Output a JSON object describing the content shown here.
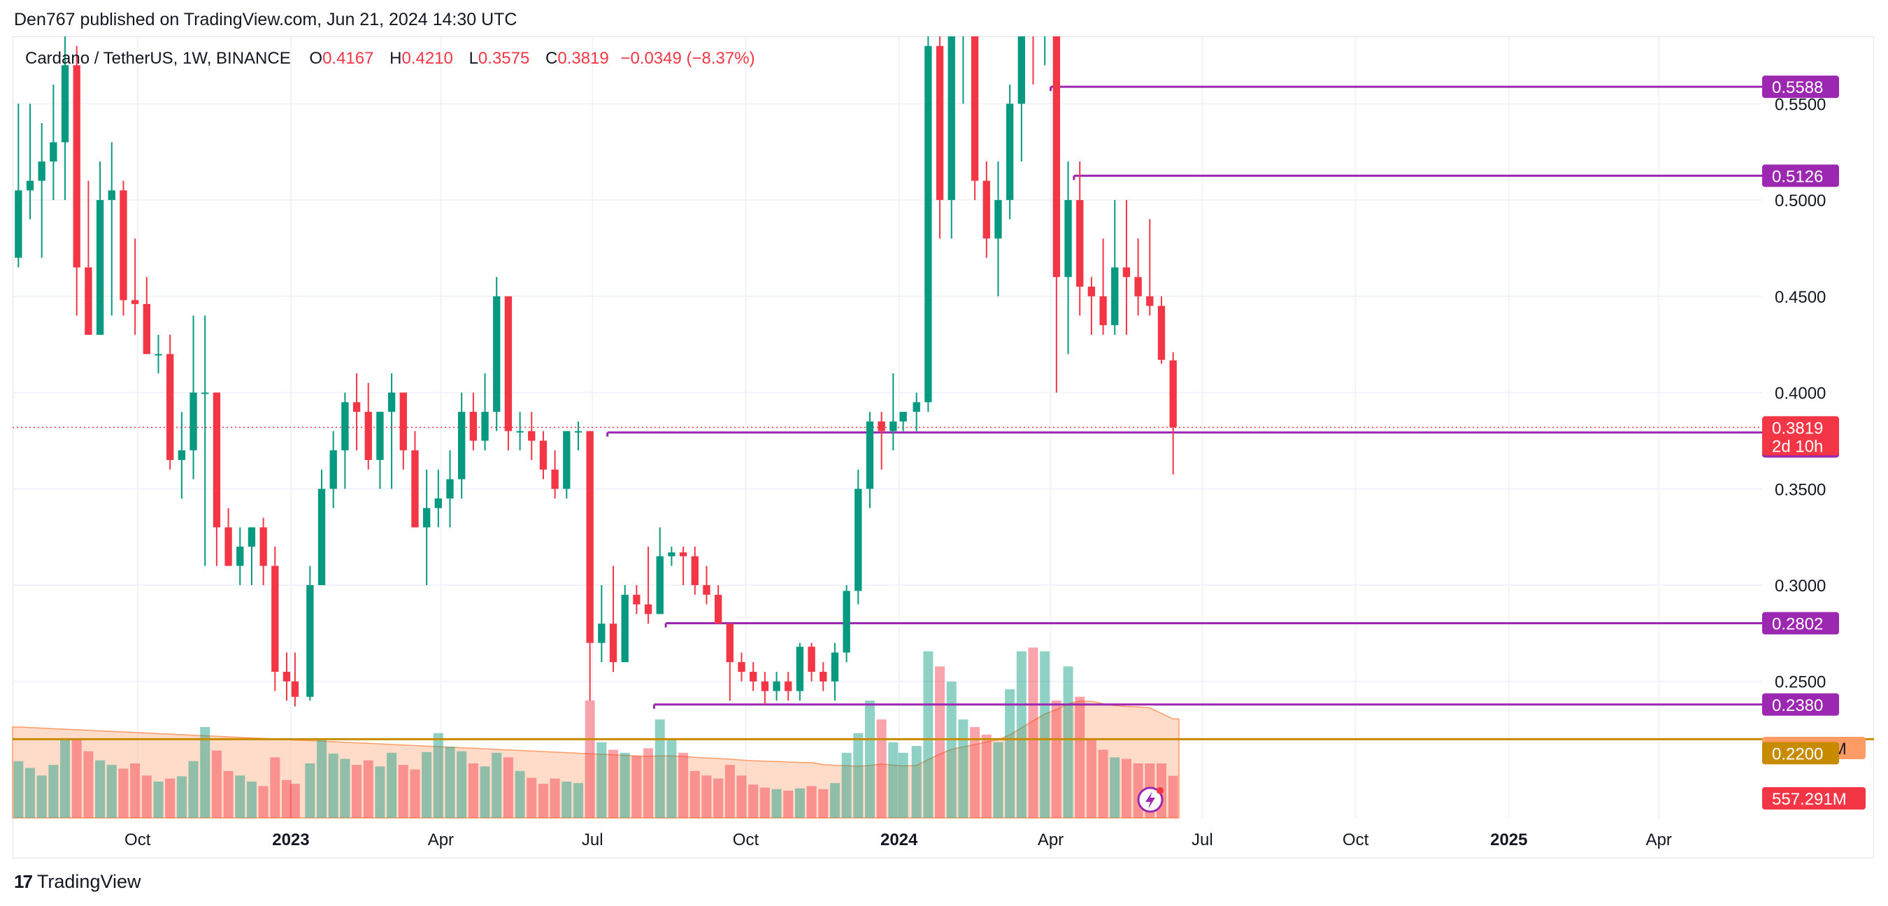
{
  "header": {
    "published": "Den767 published on TradingView.com, Jun 21, 2024 14:30 UTC"
  },
  "legend": {
    "symbol": "Cardano / TetherUS, 1W, BINANCE",
    "o_label": "O",
    "o_value": "0.4167",
    "h_label": "H",
    "h_value": "0.4210",
    "l_label": "L",
    "l_value": "0.3575",
    "c_label": "C",
    "c_value": "0.3819",
    "change": "−0.0349 (−8.37%)"
  },
  "footer": {
    "brand": "TradingView",
    "logo_icon": "tradingview-logo-icon"
  },
  "colors": {
    "up": "#089981",
    "down": "#f23645",
    "level": "#9c27b0",
    "volume_ma": "#ff9c66",
    "support_line": "#c88b00",
    "grid": "#f0f3fa"
  },
  "chart_data": {
    "type": "candlestick",
    "interval": "1W",
    "y_axis": {
      "range": [
        0.19,
        0.585
      ],
      "ticks": [
        0.25,
        0.3,
        0.35,
        0.4,
        0.45,
        0.5,
        0.55
      ],
      "tick_labels": [
        "0.2500",
        "0.3000",
        "0.3500",
        "0.4000",
        "0.4500",
        "0.5000",
        "0.5500"
      ],
      "side": "right"
    },
    "x_axis": {
      "range": [
        "2022-07-18",
        "2025-06-02"
      ],
      "ticks": [
        {
          "date": "2022-10-01",
          "label": "Oct",
          "bold": false
        },
        {
          "date": "2023-01-01",
          "label": "2023",
          "bold": true
        },
        {
          "date": "2023-04-01",
          "label": "Apr",
          "bold": false
        },
        {
          "date": "2023-07-01",
          "label": "Jul",
          "bold": false
        },
        {
          "date": "2023-10-01",
          "label": "Oct",
          "bold": false
        },
        {
          "date": "2024-01-01",
          "label": "2024",
          "bold": true
        },
        {
          "date": "2024-04-01",
          "label": "Apr",
          "bold": false
        },
        {
          "date": "2024-07-01",
          "label": "Jul",
          "bold": false
        },
        {
          "date": "2024-10-01",
          "label": "Oct",
          "bold": false
        },
        {
          "date": "2025-01-01",
          "label": "2025",
          "bold": true
        },
        {
          "date": "2025-04-01",
          "label": "Apr",
          "bold": false
        }
      ]
    },
    "grid": true,
    "current_price": {
      "value": 0.3819,
      "label": "0.3819",
      "countdown": "2d 10h"
    },
    "horizontal_levels": [
      {
        "value": 0.5588,
        "label": "0.5588",
        "from": "2024-04-01"
      },
      {
        "value": 0.5126,
        "label": "0.5126",
        "from": "2024-04-15"
      },
      {
        "value": 0.3793,
        "label": "0.3793",
        "from": "2023-07-10"
      },
      {
        "value": 0.2802,
        "label": "0.2802",
        "from": "2023-08-14"
      },
      {
        "value": 0.238,
        "label": "0.2380",
        "from": "2023-08-07"
      }
    ],
    "support_line": {
      "value": 0.22,
      "label": "0.2200"
    },
    "volume": {
      "label": "557.291M",
      "ma_label": "905.361M",
      "max_plotted": 2400
    },
    "candles": [
      {
        "t": "2022-07-18",
        "o": 0.47,
        "h": 0.55,
        "l": 0.465,
        "c": 0.505,
        "v": 750
      },
      {
        "t": "2022-07-25",
        "o": 0.505,
        "h": 0.55,
        "l": 0.49,
        "c": 0.51,
        "v": 660
      },
      {
        "t": "2022-08-01",
        "o": 0.51,
        "h": 0.54,
        "l": 0.47,
        "c": 0.52,
        "v": 560
      },
      {
        "t": "2022-08-08",
        "o": 0.52,
        "h": 0.56,
        "l": 0.5,
        "c": 0.53,
        "v": 700
      },
      {
        "t": "2022-08-15",
        "o": 0.53,
        "h": 0.585,
        "l": 0.5,
        "c": 0.57,
        "v": 1050
      },
      {
        "t": "2022-08-22",
        "o": 0.57,
        "h": 0.58,
        "l": 0.44,
        "c": 0.465,
        "v": 1050
      },
      {
        "t": "2022-08-29",
        "o": 0.465,
        "h": 0.51,
        "l": 0.43,
        "c": 0.43,
        "v": 880
      },
      {
        "t": "2022-09-05",
        "o": 0.43,
        "h": 0.52,
        "l": 0.43,
        "c": 0.5,
        "v": 760
      },
      {
        "t": "2022-09-12",
        "o": 0.5,
        "h": 0.53,
        "l": 0.44,
        "c": 0.505,
        "v": 700
      },
      {
        "t": "2022-09-19",
        "o": 0.505,
        "h": 0.51,
        "l": 0.44,
        "c": 0.448,
        "v": 650
      },
      {
        "t": "2022-09-26",
        "o": 0.448,
        "h": 0.48,
        "l": 0.43,
        "c": 0.446,
        "v": 720
      },
      {
        "t": "2022-10-03",
        "o": 0.446,
        "h": 0.46,
        "l": 0.42,
        "c": 0.42,
        "v": 560
      },
      {
        "t": "2022-10-10",
        "o": 0.42,
        "h": 0.43,
        "l": 0.41,
        "c": 0.42,
        "v": 480
      },
      {
        "t": "2022-10-17",
        "o": 0.42,
        "h": 0.43,
        "l": 0.36,
        "c": 0.365,
        "v": 520
      },
      {
        "t": "2022-10-24",
        "o": 0.365,
        "h": 0.39,
        "l": 0.345,
        "c": 0.37,
        "v": 550
      },
      {
        "t": "2022-10-31",
        "o": 0.37,
        "h": 0.44,
        "l": 0.355,
        "c": 0.4,
        "v": 750
      },
      {
        "t": "2022-11-07",
        "o": 0.4,
        "h": 0.44,
        "l": 0.31,
        "c": 0.4,
        "v": 1200
      },
      {
        "t": "2022-11-14",
        "o": 0.4,
        "h": 0.4,
        "l": 0.31,
        "c": 0.33,
        "v": 890
      },
      {
        "t": "2022-11-21",
        "o": 0.33,
        "h": 0.34,
        "l": 0.31,
        "c": 0.31,
        "v": 620
      },
      {
        "t": "2022-11-28",
        "o": 0.31,
        "h": 0.33,
        "l": 0.3,
        "c": 0.32,
        "v": 560
      },
      {
        "t": "2022-12-05",
        "o": 0.32,
        "h": 0.33,
        "l": 0.3,
        "c": 0.33,
        "v": 480
      },
      {
        "t": "2022-12-12",
        "o": 0.33,
        "h": 0.335,
        "l": 0.3,
        "c": 0.31,
        "v": 420
      },
      {
        "t": "2022-12-19",
        "o": 0.31,
        "h": 0.32,
        "l": 0.245,
        "c": 0.255,
        "v": 800
      },
      {
        "t": "2022-12-26",
        "o": 0.255,
        "h": 0.265,
        "l": 0.24,
        "c": 0.25,
        "v": 500
      },
      {
        "t": "2022-12-31",
        "o": 0.25,
        "h": 0.265,
        "l": 0.237,
        "c": 0.242,
        "v": 450
      },
      {
        "t": "2023-01-09",
        "o": 0.242,
        "h": 0.31,
        "l": 0.24,
        "c": 0.3,
        "v": 720
      },
      {
        "t": "2023-01-16",
        "o": 0.3,
        "h": 0.36,
        "l": 0.3,
        "c": 0.35,
        "v": 1050
      },
      {
        "t": "2023-01-23",
        "o": 0.35,
        "h": 0.38,
        "l": 0.34,
        "c": 0.37,
        "v": 850
      },
      {
        "t": "2023-01-30",
        "o": 0.37,
        "h": 0.4,
        "l": 0.35,
        "c": 0.395,
        "v": 780
      },
      {
        "t": "2023-02-06",
        "o": 0.395,
        "h": 0.41,
        "l": 0.37,
        "c": 0.39,
        "v": 700
      },
      {
        "t": "2023-02-13",
        "o": 0.39,
        "h": 0.405,
        "l": 0.36,
        "c": 0.365,
        "v": 760
      },
      {
        "t": "2023-02-20",
        "o": 0.365,
        "h": 0.39,
        "l": 0.35,
        "c": 0.39,
        "v": 680
      },
      {
        "t": "2023-02-27",
        "o": 0.39,
        "h": 0.41,
        "l": 0.35,
        "c": 0.4,
        "v": 860
      },
      {
        "t": "2023-03-06",
        "o": 0.4,
        "h": 0.4,
        "l": 0.36,
        "c": 0.37,
        "v": 700
      },
      {
        "t": "2023-03-13",
        "o": 0.37,
        "h": 0.38,
        "l": 0.33,
        "c": 0.33,
        "v": 640
      },
      {
        "t": "2023-03-20",
        "o": 0.33,
        "h": 0.36,
        "l": 0.3,
        "c": 0.34,
        "v": 870
      },
      {
        "t": "2023-03-27",
        "o": 0.34,
        "h": 0.36,
        "l": 0.33,
        "c": 0.345,
        "v": 1120
      },
      {
        "t": "2023-04-03",
        "o": 0.345,
        "h": 0.37,
        "l": 0.33,
        "c": 0.355,
        "v": 940
      },
      {
        "t": "2023-04-10",
        "o": 0.355,
        "h": 0.4,
        "l": 0.345,
        "c": 0.39,
        "v": 880
      },
      {
        "t": "2023-04-17",
        "o": 0.39,
        "h": 0.4,
        "l": 0.37,
        "c": 0.375,
        "v": 720
      },
      {
        "t": "2023-04-24",
        "o": 0.375,
        "h": 0.41,
        "l": 0.37,
        "c": 0.39,
        "v": 680
      },
      {
        "t": "2023-05-01",
        "o": 0.39,
        "h": 0.46,
        "l": 0.38,
        "c": 0.45,
        "v": 860
      },
      {
        "t": "2023-05-08",
        "o": 0.45,
        "h": 0.45,
        "l": 0.37,
        "c": 0.38,
        "v": 800
      },
      {
        "t": "2023-05-15",
        "o": 0.38,
        "h": 0.39,
        "l": 0.37,
        "c": 0.38,
        "v": 620
      },
      {
        "t": "2023-05-22",
        "o": 0.38,
        "h": 0.39,
        "l": 0.365,
        "c": 0.375,
        "v": 530
      },
      {
        "t": "2023-05-29",
        "o": 0.375,
        "h": 0.38,
        "l": 0.355,
        "c": 0.36,
        "v": 450
      },
      {
        "t": "2023-06-05",
        "o": 0.36,
        "h": 0.37,
        "l": 0.345,
        "c": 0.35,
        "v": 520
      },
      {
        "t": "2023-06-12",
        "o": 0.35,
        "h": 0.38,
        "l": 0.345,
        "c": 0.38,
        "v": 480
      },
      {
        "t": "2023-06-19",
        "o": 0.38,
        "h": 0.385,
        "l": 0.37,
        "c": 0.38,
        "v": 460
      },
      {
        "t": "2023-06-26",
        "o": 0.38,
        "h": 0.38,
        "l": 0.24,
        "c": 0.27,
        "v": 1550
      },
      {
        "t": "2023-07-03",
        "o": 0.27,
        "h": 0.3,
        "l": 0.26,
        "c": 0.28,
        "v": 1000
      },
      {
        "t": "2023-07-10",
        "o": 0.28,
        "h": 0.31,
        "l": 0.255,
        "c": 0.26,
        "v": 900
      },
      {
        "t": "2023-07-17",
        "o": 0.26,
        "h": 0.3,
        "l": 0.26,
        "c": 0.295,
        "v": 860
      },
      {
        "t": "2023-07-24",
        "o": 0.295,
        "h": 0.3,
        "l": 0.285,
        "c": 0.29,
        "v": 820
      },
      {
        "t": "2023-07-31",
        "o": 0.29,
        "h": 0.32,
        "l": 0.28,
        "c": 0.285,
        "v": 920
      },
      {
        "t": "2023-08-07",
        "o": 0.285,
        "h": 0.33,
        "l": 0.285,
        "c": 0.315,
        "v": 1300
      },
      {
        "t": "2023-08-14",
        "o": 0.315,
        "h": 0.32,
        "l": 0.31,
        "c": 0.317,
        "v": 1050
      },
      {
        "t": "2023-08-21",
        "o": 0.317,
        "h": 0.32,
        "l": 0.3,
        "c": 0.315,
        "v": 860
      },
      {
        "t": "2023-08-28",
        "o": 0.315,
        "h": 0.32,
        "l": 0.295,
        "c": 0.3,
        "v": 620
      },
      {
        "t": "2023-09-04",
        "o": 0.3,
        "h": 0.31,
        "l": 0.29,
        "c": 0.295,
        "v": 560
      },
      {
        "t": "2023-09-11",
        "o": 0.295,
        "h": 0.3,
        "l": 0.28,
        "c": 0.28,
        "v": 520
      },
      {
        "t": "2023-09-18",
        "o": 0.28,
        "h": 0.28,
        "l": 0.24,
        "c": 0.26,
        "v": 700
      },
      {
        "t": "2023-09-25",
        "o": 0.26,
        "h": 0.265,
        "l": 0.25,
        "c": 0.255,
        "v": 560
      },
      {
        "t": "2023-10-02",
        "o": 0.255,
        "h": 0.26,
        "l": 0.245,
        "c": 0.25,
        "v": 440
      },
      {
        "t": "2023-10-09",
        "o": 0.25,
        "h": 0.255,
        "l": 0.238,
        "c": 0.245,
        "v": 400
      },
      {
        "t": "2023-10-16",
        "o": 0.245,
        "h": 0.255,
        "l": 0.24,
        "c": 0.25,
        "v": 380
      },
      {
        "t": "2023-10-23",
        "o": 0.25,
        "h": 0.255,
        "l": 0.24,
        "c": 0.245,
        "v": 360
      },
      {
        "t": "2023-10-30",
        "o": 0.245,
        "h": 0.27,
        "l": 0.24,
        "c": 0.268,
        "v": 390
      },
      {
        "t": "2023-11-06",
        "o": 0.268,
        "h": 0.27,
        "l": 0.25,
        "c": 0.255,
        "v": 420
      },
      {
        "t": "2023-11-13",
        "o": 0.255,
        "h": 0.26,
        "l": 0.245,
        "c": 0.25,
        "v": 380
      },
      {
        "t": "2023-11-20",
        "o": 0.25,
        "h": 0.27,
        "l": 0.24,
        "c": 0.265,
        "v": 460
      },
      {
        "t": "2023-11-27",
        "o": 0.265,
        "h": 0.3,
        "l": 0.26,
        "c": 0.297,
        "v": 860
      },
      {
        "t": "2023-12-04",
        "o": 0.297,
        "h": 0.36,
        "l": 0.29,
        "c": 0.35,
        "v": 1120
      },
      {
        "t": "2023-12-11",
        "o": 0.35,
        "h": 0.39,
        "l": 0.34,
        "c": 0.385,
        "v": 1550
      },
      {
        "t": "2023-12-18",
        "o": 0.385,
        "h": 0.39,
        "l": 0.36,
        "c": 0.38,
        "v": 1300
      },
      {
        "t": "2023-12-25",
        "o": 0.38,
        "h": 0.41,
        "l": 0.37,
        "c": 0.385,
        "v": 1000
      },
      {
        "t": "2023-12-31",
        "o": 0.385,
        "h": 0.39,
        "l": 0.38,
        "c": 0.39,
        "v": 860
      },
      {
        "t": "2024-01-08",
        "o": 0.39,
        "h": 0.4,
        "l": 0.38,
        "c": 0.395,
        "v": 950
      },
      {
        "t": "2024-01-15",
        "o": 0.395,
        "h": 0.59,
        "l": 0.39,
        "c": 0.58,
        "v": 2200
      },
      {
        "t": "2024-01-22",
        "o": 0.58,
        "h": 0.63,
        "l": 0.48,
        "c": 0.5,
        "v": 2000
      },
      {
        "t": "2024-01-29",
        "o": 0.5,
        "h": 0.6,
        "l": 0.48,
        "c": 0.59,
        "v": 1800
      },
      {
        "t": "2024-02-05",
        "o": 0.59,
        "h": 0.66,
        "l": 0.55,
        "c": 0.6,
        "v": 1300
      },
      {
        "t": "2024-02-12",
        "o": 0.6,
        "h": 0.62,
        "l": 0.5,
        "c": 0.51,
        "v": 1200
      },
      {
        "t": "2024-02-19",
        "o": 0.51,
        "h": 0.52,
        "l": 0.47,
        "c": 0.48,
        "v": 1100
      },
      {
        "t": "2024-02-26",
        "o": 0.48,
        "h": 0.52,
        "l": 0.45,
        "c": 0.5,
        "v": 1000
      },
      {
        "t": "2024-03-04",
        "o": 0.5,
        "h": 0.56,
        "l": 0.49,
        "c": 0.55,
        "v": 1700
      },
      {
        "t": "2024-03-11",
        "o": 0.55,
        "h": 0.62,
        "l": 0.52,
        "c": 0.59,
        "v": 2200
      },
      {
        "t": "2024-03-18",
        "o": 0.59,
        "h": 0.6,
        "l": 0.56,
        "c": 0.585,
        "v": 2250
      },
      {
        "t": "2024-03-25",
        "o": 0.585,
        "h": 0.59,
        "l": 0.57,
        "c": 0.585,
        "v": 2200
      },
      {
        "t": "2024-04-01",
        "o": 0.585,
        "h": 0.59,
        "l": 0.4,
        "c": 0.46,
        "v": 1550
      },
      {
        "t": "2024-04-08",
        "o": 0.46,
        "h": 0.52,
        "l": 0.42,
        "c": 0.5,
        "v": 2000
      },
      {
        "t": "2024-04-15",
        "o": 0.5,
        "h": 0.52,
        "l": 0.44,
        "c": 0.455,
        "v": 1600
      },
      {
        "t": "2024-04-22",
        "o": 0.455,
        "h": 0.46,
        "l": 0.43,
        "c": 0.45,
        "v": 1050
      },
      {
        "t": "2024-04-29",
        "o": 0.45,
        "h": 0.48,
        "l": 0.43,
        "c": 0.435,
        "v": 900
      },
      {
        "t": "2024-05-06",
        "o": 0.435,
        "h": 0.5,
        "l": 0.43,
        "c": 0.465,
        "v": 800
      },
      {
        "t": "2024-05-13",
        "o": 0.465,
        "h": 0.5,
        "l": 0.43,
        "c": 0.46,
        "v": 780
      },
      {
        "t": "2024-05-20",
        "o": 0.46,
        "h": 0.48,
        "l": 0.44,
        "c": 0.45,
        "v": 720
      },
      {
        "t": "2024-05-27",
        "o": 0.45,
        "h": 0.49,
        "l": 0.44,
        "c": 0.445,
        "v": 720
      },
      {
        "t": "2024-06-03",
        "o": 0.445,
        "h": 0.45,
        "l": 0.415,
        "c": 0.417,
        "v": 720
      },
      {
        "t": "2024-06-10",
        "o": 0.4167,
        "h": 0.421,
        "l": 0.3575,
        "c": 0.3819,
        "v": 557
      }
    ]
  }
}
